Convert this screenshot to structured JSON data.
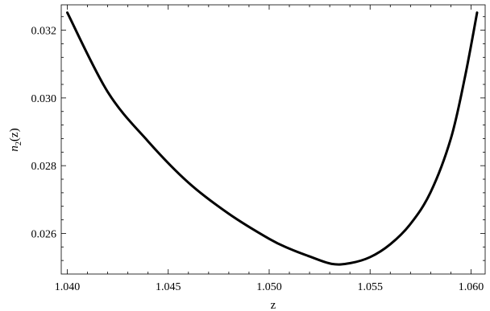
{
  "chart_data": {
    "type": "line",
    "xlabel": "z",
    "ylabel_main": "n",
    "ylabel_sub": "2",
    "ylabel_tail": "(z)",
    "xlim": [
      1.0397,
      1.0607
    ],
    "ylim": [
      0.0248,
      0.03275
    ],
    "xticks": [
      1.04,
      1.045,
      1.05,
      1.055,
      1.06
    ],
    "xtick_labels": [
      "1.040",
      "1.045",
      "1.050",
      "1.055",
      "1.060"
    ],
    "yticks": [
      0.026,
      0.028,
      0.03,
      0.032
    ],
    "ytick_labels": [
      "0.026",
      "0.028",
      "0.030",
      "0.032"
    ],
    "grid": false,
    "series": [
      {
        "x": [
          1.04,
          1.042,
          1.044,
          1.046,
          1.048,
          1.05,
          1.051,
          1.052,
          1.0531,
          1.054,
          1.055,
          1.056,
          1.057,
          1.058,
          1.059,
          1.0597,
          1.0603
        ],
        "y": [
          0.03252,
          0.03018,
          0.02872,
          0.0275,
          0.02658,
          0.02584,
          0.02555,
          0.02532,
          0.0251,
          0.02512,
          0.0253,
          0.02568,
          0.02628,
          0.02722,
          0.0288,
          0.03062,
          0.03252
        ]
      }
    ]
  }
}
